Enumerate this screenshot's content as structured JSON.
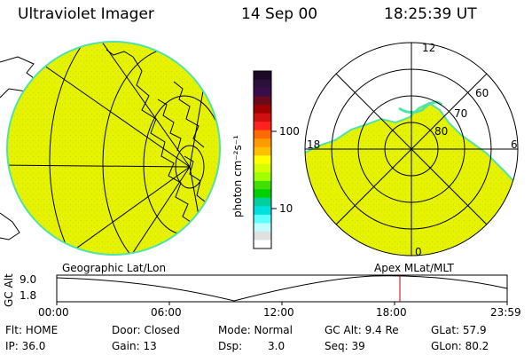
{
  "header": {
    "instrument": "Ultraviolet Imager",
    "date": "14 Sep 00",
    "time": "18:25:39 UT"
  },
  "colorbar": {
    "unit": "photon cm⁻²s⁻¹",
    "ticks": [
      "100",
      "10"
    ],
    "colors": [
      "#1a0a28",
      "#2a103a",
      "#3a0d4a",
      "#6a0a1a",
      "#a00000",
      "#d01010",
      "#ff2020",
      "#ff6a00",
      "#ff9a00",
      "#ffc000",
      "#ffff00",
      "#d4ff00",
      "#a0ff00",
      "#40e000",
      "#00d000",
      "#00d0a0",
      "#00e0e0",
      "#60ffff",
      "#c0ffff",
      "#e0e0e0",
      "#ffffff"
    ]
  },
  "polar": {
    "labels": {
      "top": "12",
      "left": "18",
      "right": "6",
      "bottom": "0"
    },
    "lat_labels": [
      "60",
      "70",
      "80"
    ]
  },
  "captions": {
    "left": "Geographic Lat/Lon",
    "right": "Apex MLat/MLT"
  },
  "altitude_plot": {
    "axis_label": "GC Alt",
    "y_ticks": [
      "9.0",
      "1.8"
    ],
    "x_ticks": [
      "00:00",
      "06:00",
      "12:00",
      "18:00",
      "23:59"
    ]
  },
  "status": {
    "flt": "Flt: HOME",
    "door": "Door: Closed",
    "mode": "Mode: Normal",
    "gc_alt": "GC Alt: 9.4 Re",
    "glat": "GLat: 57.9",
    "ip": "IP: 36.0",
    "gain": "Gain: 13",
    "dsp_label": "Dsp:",
    "dsp_value": "3.0",
    "seq": "Seq: 39",
    "glon": "GLon: 80.2"
  },
  "palette": {
    "emission": "#e6f200",
    "emission_edge": "#4fe3a8",
    "marker": "#cc0000"
  }
}
